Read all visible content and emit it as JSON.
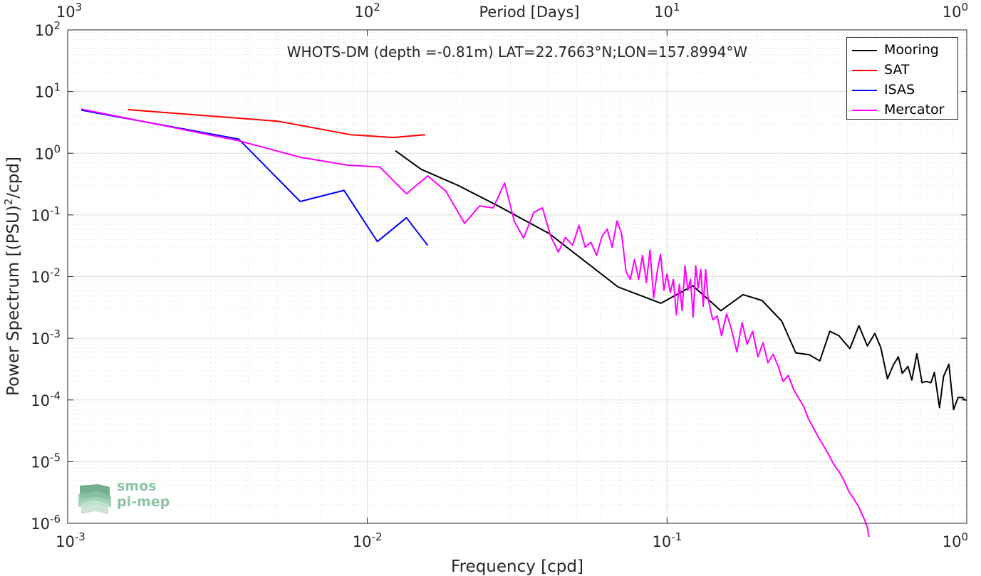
{
  "chart_data": {
    "type": "line",
    "title": "WHOTS-DM (depth =-0.81m) LAT=22.7663°N;LON=157.8994°W",
    "xlabel": "Frequency [cpd]",
    "ylabel_main": "Power Spectrum [(PSU)",
    "ylabel_sup": "2",
    "ylabel_tail": "/cpd]",
    "top_xlabel": "Period [Days]",
    "x_scale": "log",
    "y_scale": "log",
    "xlim": [
      0.001,
      1
    ],
    "ylim": [
      1e-06,
      100
    ],
    "grid": true,
    "legend_position": "top-right",
    "x_ticks": [
      {
        "value": 0.001,
        "base": "10",
        "exp": "-3"
      },
      {
        "value": 0.01,
        "base": "10",
        "exp": "-2"
      },
      {
        "value": 0.1,
        "base": "10",
        "exp": "-1"
      },
      {
        "value": 1,
        "base": "10",
        "exp": "0"
      }
    ],
    "y_ticks": [
      {
        "value": 1e-06,
        "base": "10",
        "exp": "-6"
      },
      {
        "value": 1e-05,
        "base": "10",
        "exp": "-5"
      },
      {
        "value": 0.0001,
        "base": "10",
        "exp": "-4"
      },
      {
        "value": 0.001,
        "base": "10",
        "exp": "-3"
      },
      {
        "value": 0.01,
        "base": "10",
        "exp": "-2"
      },
      {
        "value": 0.1,
        "base": "10",
        "exp": "-1"
      },
      {
        "value": 1,
        "base": "10",
        "exp": "0"
      },
      {
        "value": 10,
        "base": "10",
        "exp": "1"
      },
      {
        "value": 100,
        "base": "10",
        "exp": "2"
      }
    ],
    "top_ticks": [
      {
        "value": 0.001,
        "base": "10",
        "exp": "3"
      },
      {
        "value": 0.01,
        "base": "10",
        "exp": "2"
      },
      {
        "value": 0.1,
        "base": "10",
        "exp": "1"
      },
      {
        "value": 1,
        "base": "10",
        "exp": "0"
      }
    ],
    "series": [
      {
        "name": "Mooring",
        "color": "#000000",
        "x": [
          0.0124,
          0.0151,
          0.0201,
          0.0273,
          0.0404,
          0.0686,
          0.0954,
          0.1219,
          0.1512,
          0.1792,
          0.2074,
          0.2414,
          0.2689,
          0.2983,
          0.3233,
          0.3492,
          0.3744,
          0.4075,
          0.4367,
          0.4659,
          0.4936,
          0.5164,
          0.5437,
          0.5692,
          0.5913,
          0.6093,
          0.6365,
          0.6557,
          0.6816,
          0.7094,
          0.7323,
          0.7593,
          0.7799,
          0.8111,
          0.8367,
          0.8718,
          0.9035,
          0.9358,
          0.9687,
          0.983,
          1.0
        ],
        "y": [
          1.1,
          0.55,
          0.3,
          0.14,
          0.05,
          0.0068,
          0.0037,
          0.0071,
          0.0028,
          0.0051,
          0.0041,
          0.0019,
          0.00058,
          0.00054,
          0.00043,
          0.0013,
          0.0011,
          0.00068,
          0.0016,
          0.00075,
          0.0012,
          0.00071,
          0.00022,
          0.00037,
          0.0005,
          0.00027,
          0.00035,
          0.00021,
          0.00056,
          0.00019,
          0.0002,
          0.00019,
          0.00028,
          7.5e-05,
          0.00024,
          0.00038,
          7e-05,
          0.00011,
          0.00011,
          0.0001,
          0.0001
        ]
      },
      {
        "name": "SAT",
        "color": "#ff0000",
        "x": [
          0.00159,
          0.00504,
          0.0088,
          0.0122,
          0.0156
        ],
        "y": [
          5.1,
          3.3,
          2.0,
          1.8,
          2.0
        ]
      },
      {
        "name": "ISAS",
        "color": "#0000ff",
        "x": [
          0.00111,
          0.00372,
          0.00597,
          0.00836,
          0.0108,
          0.0135,
          0.0159
        ],
        "y": [
          5.0,
          1.7,
          0.165,
          0.25,
          0.037,
          0.09,
          0.032
        ]
      },
      {
        "name": "Mercator",
        "color": "#ff00ff",
        "x": [
          0.00111,
          0.00372,
          0.00597,
          0.0086,
          0.011,
          0.0135,
          0.0159,
          0.0183,
          0.0211,
          0.0237,
          0.0263,
          0.0287,
          0.0309,
          0.0332,
          0.0359,
          0.0384,
          0.0409,
          0.0434,
          0.0458,
          0.0484,
          0.0508,
          0.0533,
          0.0557,
          0.0582,
          0.0607,
          0.0631,
          0.0656,
          0.0681,
          0.0705,
          0.073,
          0.0754,
          0.0779,
          0.0804,
          0.0828,
          0.0853,
          0.0877,
          0.0902,
          0.0927,
          0.0951,
          0.0976,
          0.1,
          0.1025,
          0.105,
          0.1074,
          0.1099,
          0.1123,
          0.1148,
          0.1173,
          0.1197,
          0.1222,
          0.1246,
          0.1271,
          0.1296,
          0.132,
          0.1345,
          0.137,
          0.139,
          0.142,
          0.147,
          0.152,
          0.158,
          0.164,
          0.171,
          0.178,
          0.185,
          0.193,
          0.201,
          0.209,
          0.217,
          0.226,
          0.235,
          0.244,
          0.254,
          0.264,
          0.274,
          0.285,
          0.296,
          0.308,
          0.32,
          0.333,
          0.346,
          0.36,
          0.374,
          0.389,
          0.404,
          0.42,
          0.437,
          0.454,
          0.465,
          0.472
        ],
        "y": [
          5.2,
          1.6,
          0.86,
          0.64,
          0.6,
          0.22,
          0.43,
          0.24,
          0.073,
          0.14,
          0.13,
          0.33,
          0.08,
          0.042,
          0.11,
          0.13,
          0.045,
          0.025,
          0.043,
          0.032,
          0.068,
          0.03,
          0.036,
          0.022,
          0.045,
          0.059,
          0.03,
          0.08,
          0.05,
          0.012,
          0.009,
          0.019,
          0.009,
          0.022,
          0.008,
          0.027,
          0.0045,
          0.012,
          0.023,
          0.006,
          0.011,
          0.0055,
          0.009,
          0.0024,
          0.0075,
          0.0028,
          0.015,
          0.006,
          0.009,
          0.0022,
          0.015,
          0.0065,
          0.013,
          0.0033,
          0.013,
          0.0045,
          0.0032,
          0.002,
          0.0023,
          0.0011,
          0.0025,
          0.0014,
          0.0006,
          0.0018,
          0.0008,
          0.0013,
          0.0005,
          0.00085,
          0.0004,
          0.00055,
          0.00035,
          0.0002,
          0.00025,
          0.00015,
          0.00011,
          8e-05,
          5e-05,
          3.5e-05,
          2.5e-05,
          1.8e-05,
          1.3e-05,
          9e-06,
          7e-06,
          5e-06,
          3.3e-06,
          2.5e-06,
          1.8e-06,
          1.2e-06,
          9e-07,
          6e-07
        ]
      }
    ]
  },
  "logo": {
    "line1": "smos",
    "line2": "pi-mep"
  }
}
